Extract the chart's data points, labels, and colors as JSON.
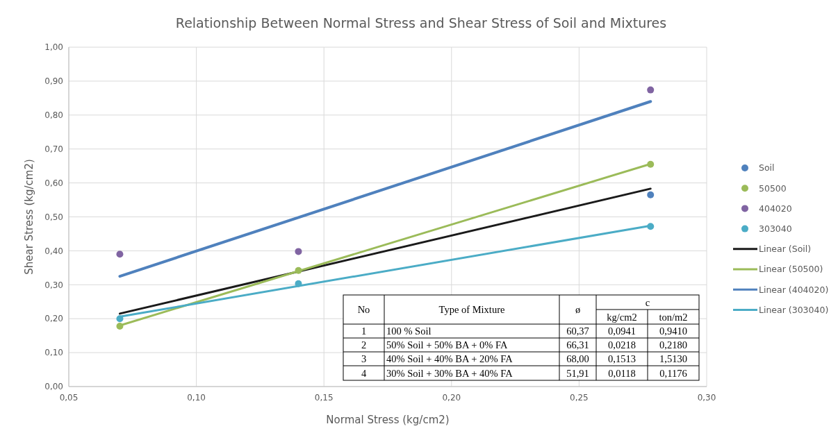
{
  "chart_data": {
    "type": "scatter",
    "title": "Relationship Between Normal Stress and Shear Stress of Soil and Mixtures",
    "xlabel": "Normal Stress (kg/cm2)",
    "ylabel": "Shear Stress (kg/cm2)",
    "x": [
      0.07,
      0.14,
      0.278
    ],
    "series": [
      {
        "name": "Soil",
        "color": "#4f81bd",
        "values": [
          null,
          null,
          0.565
        ]
      },
      {
        "name": "50500",
        "color": "#9bbb59",
        "values": [
          0.178,
          0.342,
          0.655
        ]
      },
      {
        "name": "404020",
        "color": "#8064a2",
        "values": [
          0.39,
          0.398,
          0.874
        ]
      },
      {
        "name": "303040",
        "color": "#4bacc6",
        "values": [
          0.2,
          0.303,
          0.472
        ]
      },
      {
        "name": "Linear (Soil)",
        "type": "line",
        "marker": "none",
        "color": "#1a1a1a",
        "values": [
          0.215,
          null,
          0.583
        ]
      },
      {
        "name": "Linear (50500)",
        "type": "line",
        "marker": "none",
        "color": "#9bbb59",
        "values": [
          0.18,
          null,
          0.656
        ]
      },
      {
        "name": "Linear (404020)",
        "type": "line",
        "marker": "none",
        "color": "#4f81bd",
        "values": [
          0.325,
          null,
          0.84
        ]
      },
      {
        "name": "Linear (303040)",
        "type": "line",
        "marker": "none",
        "color": "#4bacc6",
        "values": [
          0.206,
          null,
          0.474
        ]
      }
    ],
    "xlim": [
      0.05,
      0.3
    ],
    "xticks": [
      {
        "value": 0.05,
        "label": "0,05"
      },
      {
        "value": 0.1,
        "label": "0,10"
      },
      {
        "value": 0.15,
        "label": "0,15"
      },
      {
        "value": 0.2,
        "label": "0,20"
      },
      {
        "value": 0.25,
        "label": "0,25"
      },
      {
        "value": 0.3,
        "label": "0,30"
      }
    ],
    "ylim": [
      0,
      1
    ],
    "yticks": [
      {
        "value": 0,
        "label": "0,00"
      },
      {
        "value": 0.1,
        "label": "0,10"
      },
      {
        "value": 0.2,
        "label": "0,20"
      },
      {
        "value": 0.3,
        "label": "0,30"
      },
      {
        "value": 0.4,
        "label": "0,40"
      },
      {
        "value": 0.5,
        "label": "0,50"
      },
      {
        "value": 0.6,
        "label": "0,60"
      },
      {
        "value": 0.7,
        "label": "0,70"
      },
      {
        "value": 0.8,
        "label": "0,80"
      },
      {
        "value": 0.9,
        "label": "0,90"
      },
      {
        "value": 1,
        "label": "1,00"
      }
    ],
    "grid": true,
    "legend": "right",
    "marker": "circle",
    "line_style": "solid",
    "annotations": [
      "No",
      "Type of Mixture",
      "ø",
      "c",
      "kg/cm2",
      "ton/m2",
      "1",
      "100 % Soil",
      "60,37",
      "0,0941",
      "0,9410",
      "2",
      "50% Soil + 50% BA + 0% FA",
      "66,31",
      "0,0218",
      "0,2180",
      "3",
      "40% Soil + 40% BA + 20% FA",
      "68,00",
      "0,1513",
      "1,5130",
      "4",
      "30% Soil + 30% BA + 40% FA",
      "51,91",
      "0,0118",
      "0,1176"
    ]
  }
}
